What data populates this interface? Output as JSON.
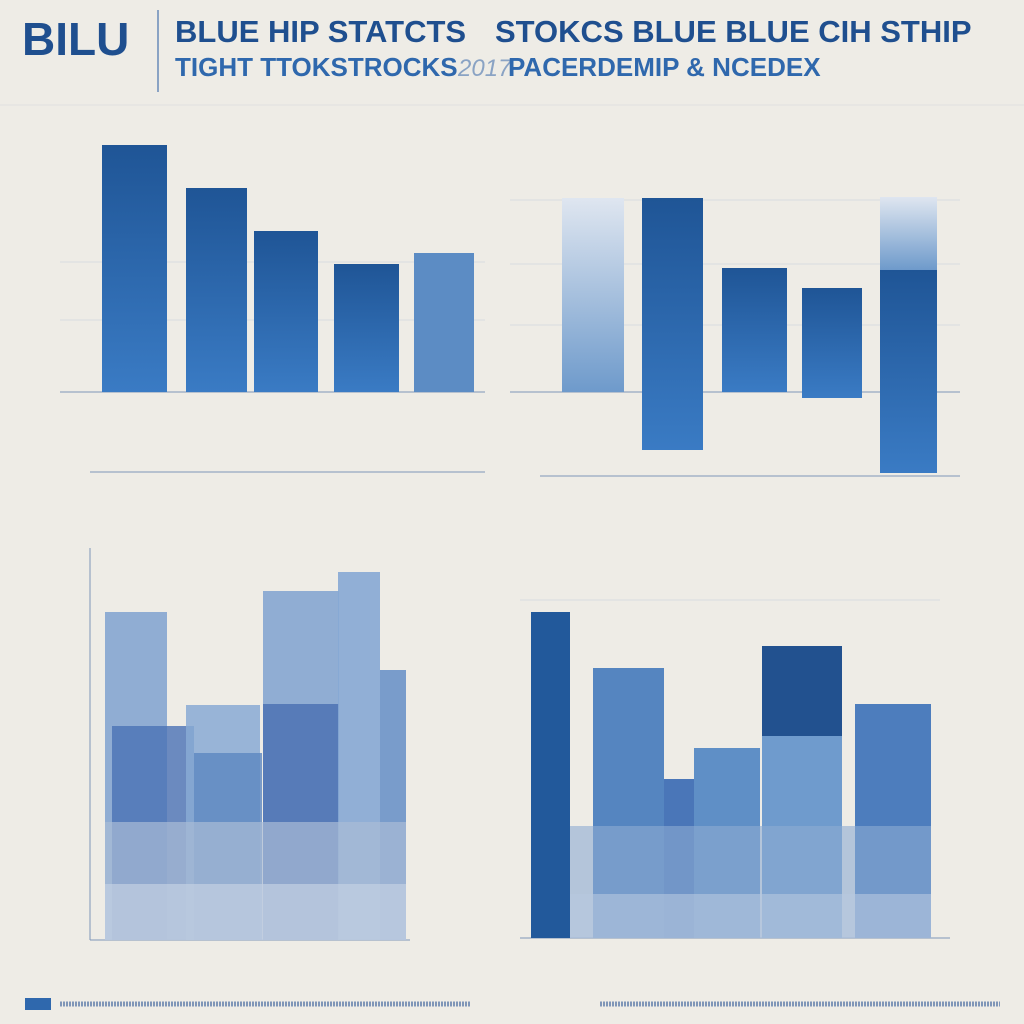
{
  "header": {
    "logo": "BILU",
    "title_left": "BLUE HIP STATCTS",
    "title_right": "STOKCS BLUE BLUE CIH STHIP",
    "subtitle_left": "TIGHT TTOKSTROCKS",
    "year": "2017",
    "subtitle_right": "PACERDEMIP & NCEDEX"
  }
}
